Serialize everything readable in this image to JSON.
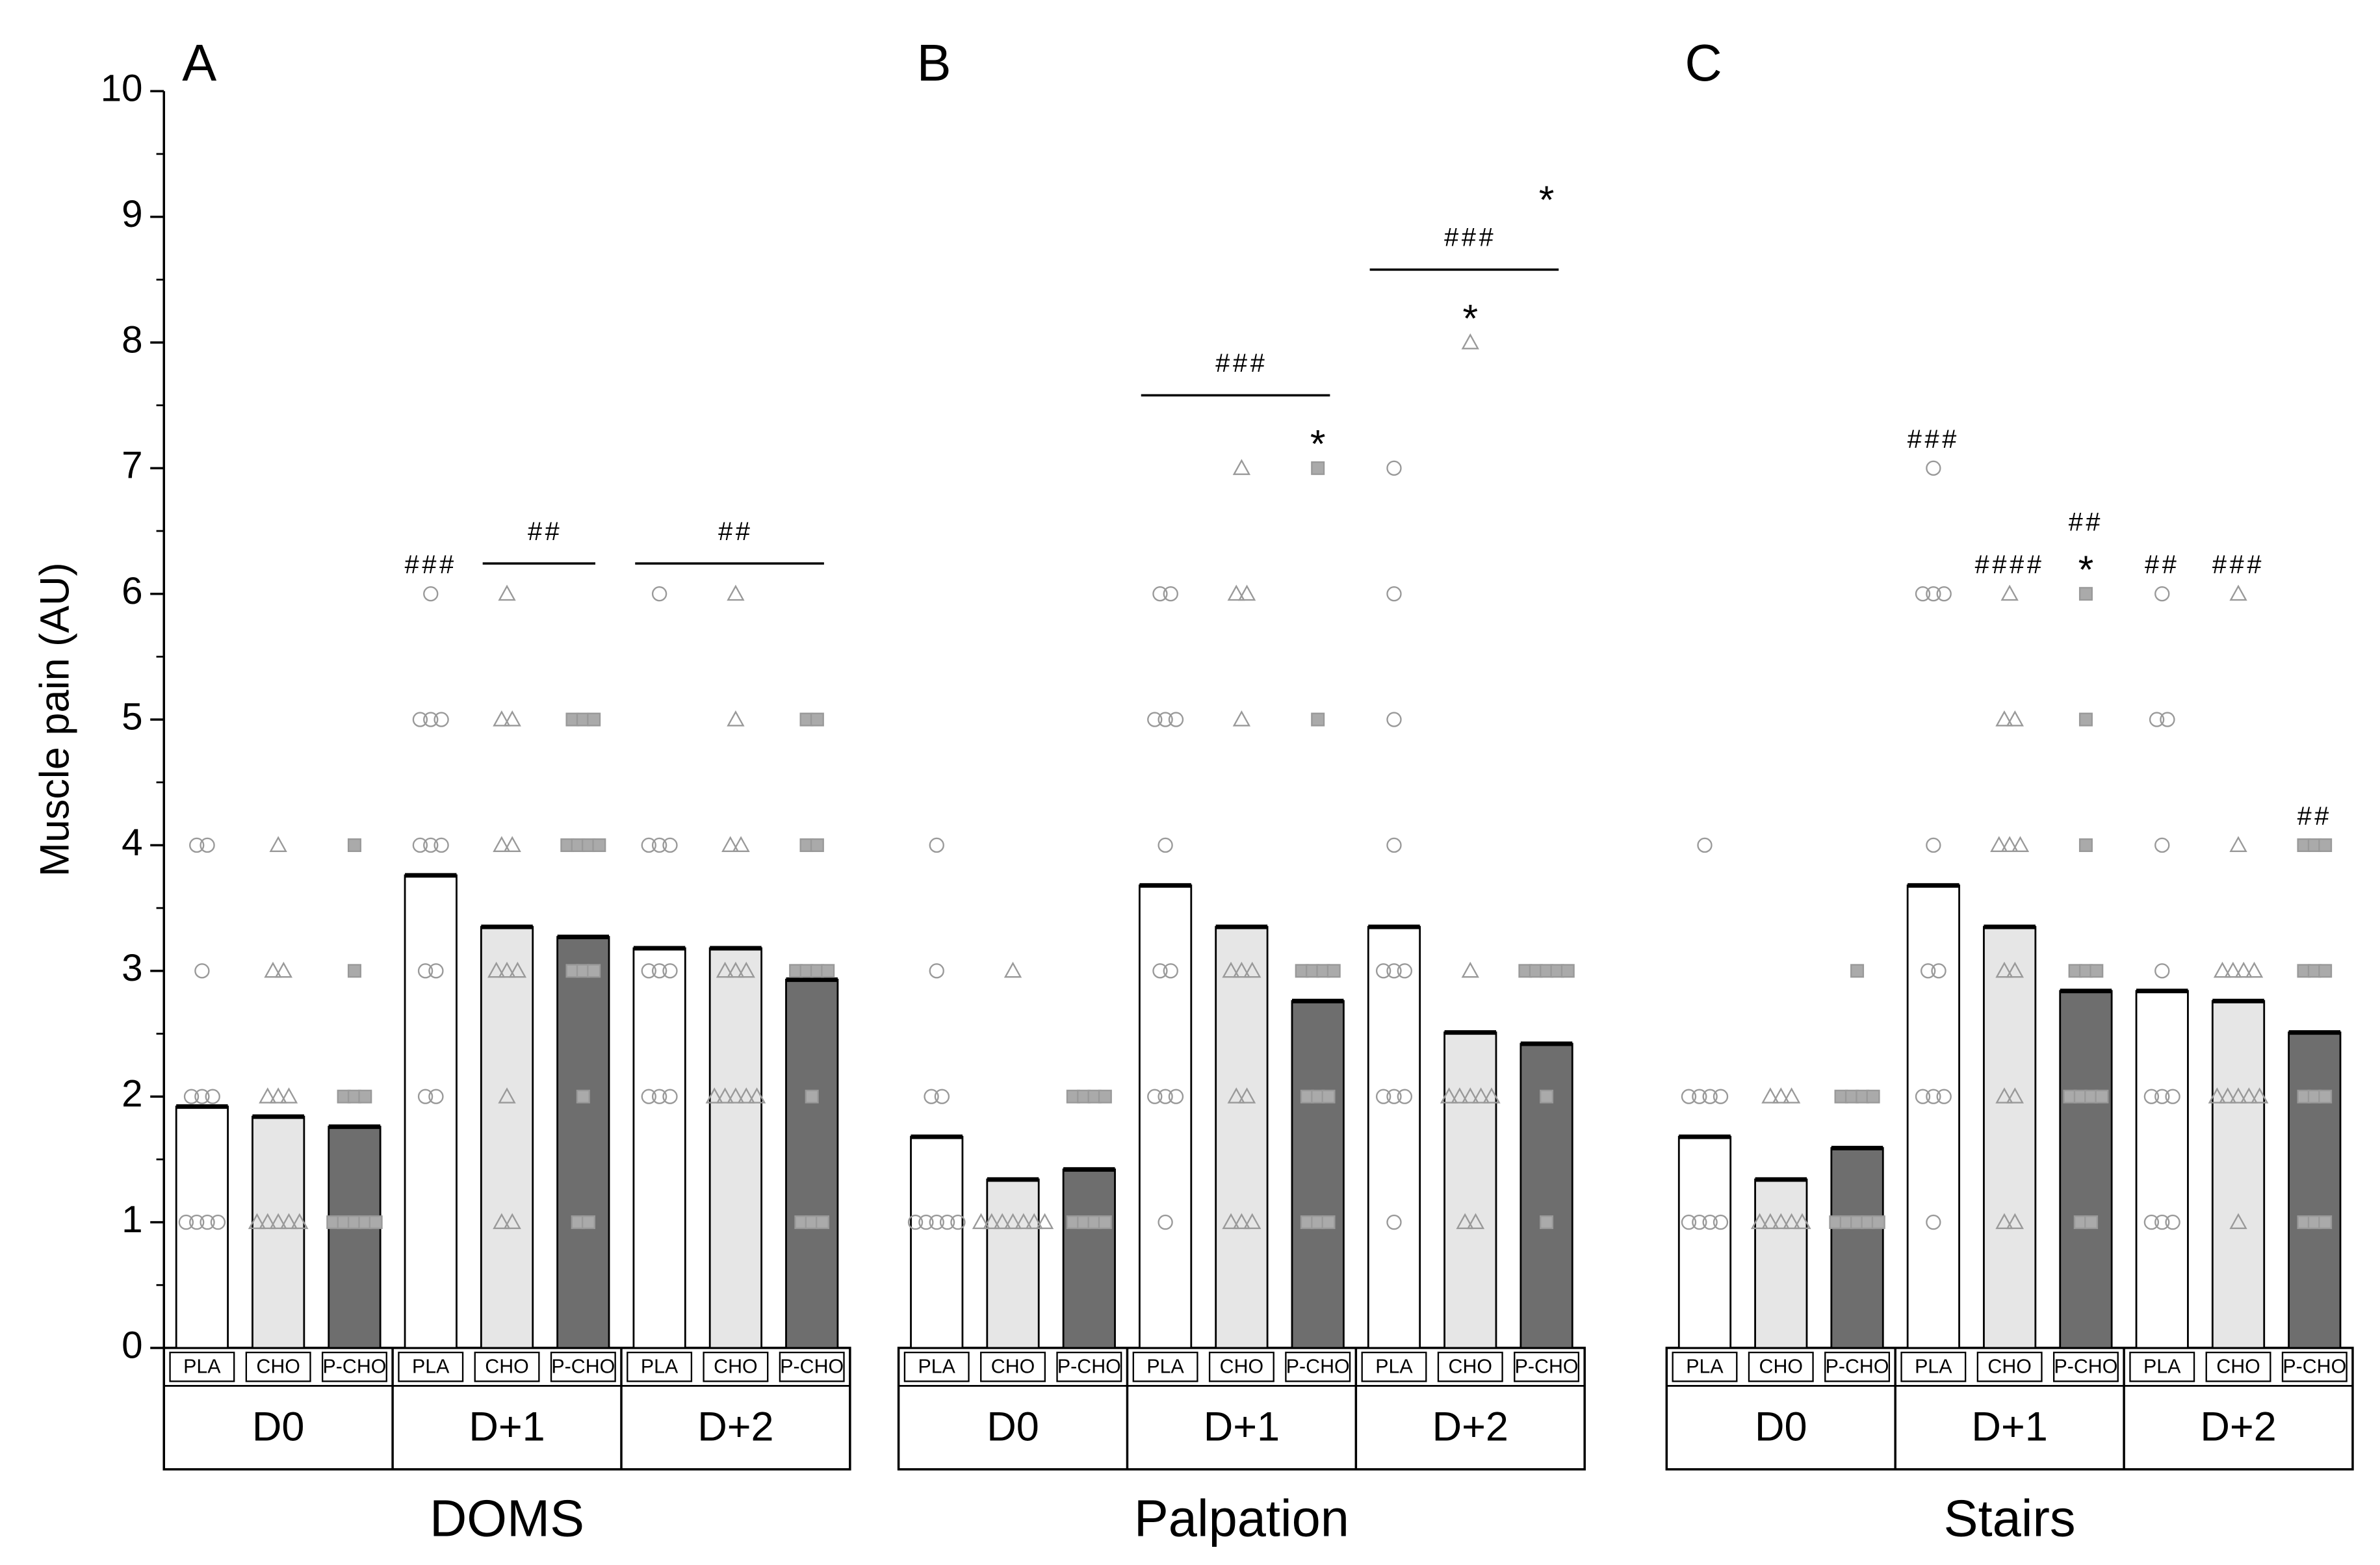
{
  "chart_data": [
    {
      "type": "bar",
      "title": "A",
      "xlabel": "DOMS",
      "ylabel": "Muscle pain (AU)",
      "ylim": [
        0,
        10
      ],
      "yticks": [
        0,
        1,
        2,
        3,
        4,
        5,
        6,
        7,
        8,
        9,
        10
      ],
      "groups": [
        "D0",
        "D+1",
        "D+2"
      ],
      "series": [
        {
          "name": "PLA",
          "color": "#ffffff",
          "marker": "circle",
          "values": [
            1.92,
            3.76,
            3.18
          ],
          "points": [
            [
              1,
              1,
              1,
              1,
              2,
              2,
              2,
              3,
              4,
              4
            ],
            [
              2,
              2,
              3,
              3,
              4,
              4,
              4,
              5,
              5,
              5,
              6
            ],
            [
              2,
              2,
              2,
              3,
              3,
              3,
              4,
              4,
              4,
              6
            ]
          ]
        },
        {
          "name": "CHO",
          "color": "#e6e6e6",
          "marker": "triangle",
          "values": [
            1.84,
            3.35,
            3.18
          ],
          "points": [
            [
              1,
              1,
              1,
              1,
              1,
              2,
              2,
              2,
              3,
              3,
              4
            ],
            [
              1,
              1,
              2,
              3,
              3,
              3,
              4,
              4,
              5,
              5,
              6
            ],
            [
              2,
              2,
              2,
              2,
              2,
              3,
              3,
              3,
              4,
              4,
              5,
              6
            ]
          ]
        },
        {
          "name": "P-CHO",
          "color": "#6e6e6e",
          "marker": "square",
          "values": [
            1.76,
            3.27,
            2.93
          ],
          "points": [
            [
              1,
              1,
              1,
              1,
              1,
              2,
              2,
              2,
              3,
              4
            ],
            [
              1,
              1,
              2,
              3,
              3,
              3,
              4,
              4,
              4,
              4,
              5,
              5,
              5
            ],
            [
              1,
              1,
              1,
              2,
              3,
              3,
              3,
              3,
              4,
              4,
              5,
              5
            ]
          ]
        }
      ],
      "annotations": [
        {
          "group": 1,
          "series": [
            0,
            0
          ],
          "text": "###"
        },
        {
          "group": 1,
          "series": [
            1,
            2
          ],
          "text": "##"
        },
        {
          "group": 2,
          "series": [
            0,
            2
          ],
          "text": "##"
        }
      ]
    },
    {
      "type": "bar",
      "title": "B",
      "xlabel": "Palpation",
      "groups": [
        "D0",
        "D+1",
        "D+2"
      ],
      "series": [
        {
          "name": "PLA",
          "color": "#ffffff",
          "marker": "circle",
          "values": [
            1.68,
            3.68,
            3.35
          ],
          "points": [
            [
              1,
              1,
              1,
              1,
              1,
              2,
              2,
              3,
              4
            ],
            [
              1,
              2,
              2,
              2,
              3,
              3,
              4,
              5,
              5,
              5,
              6,
              6
            ],
            [
              1,
              2,
              2,
              2,
              3,
              3,
              3,
              4,
              5,
              6,
              7
            ]
          ]
        },
        {
          "name": "CHO",
          "color": "#e6e6e6",
          "marker": "triangle",
          "values": [
            1.34,
            3.35,
            2.51
          ],
          "points": [
            [
              1,
              1,
              1,
              1,
              1,
              1,
              1,
              3
            ],
            [
              1,
              1,
              1,
              2,
              2,
              3,
              3,
              3,
              5,
              6,
              6,
              7
            ],
            [
              1,
              1,
              2,
              2,
              2,
              2,
              2,
              3,
              8
            ]
          ]
        },
        {
          "name": "P-CHO",
          "color": "#6e6e6e",
          "marker": "square",
          "values": [
            1.42,
            2.76,
            2.42
          ],
          "points": [
            [
              1,
              1,
              1,
              1,
              2,
              2,
              2,
              2
            ],
            [
              1,
              1,
              1,
              2,
              2,
              2,
              3,
              3,
              3,
              3,
              5,
              7
            ],
            [
              1,
              2,
              3,
              3,
              3,
              3,
              3
            ]
          ]
        }
      ],
      "annotations": [
        {
          "group": 1,
          "series": [
            2,
            2
          ],
          "text": "*"
        },
        {
          "group": 1,
          "series": [
            0,
            2
          ],
          "text": "###"
        },
        {
          "group": 2,
          "series": [
            1,
            1
          ],
          "text": "*"
        },
        {
          "group": 2,
          "series": [
            0,
            2
          ],
          "text": "###"
        },
        {
          "group": 2,
          "series": [
            2,
            2
          ],
          "text": "*"
        }
      ]
    },
    {
      "type": "bar",
      "title": "C",
      "xlabel": "Stairs",
      "groups": [
        "D0",
        "D+1",
        "D+2"
      ],
      "series": [
        {
          "name": "PLA",
          "color": "#ffffff",
          "marker": "circle",
          "values": [
            1.68,
            3.68,
            2.84
          ],
          "points": [
            [
              1,
              1,
              1,
              1,
              2,
              2,
              2,
              2,
              4
            ],
            [
              1,
              2,
              2,
              2,
              3,
              3,
              4,
              6,
              6,
              6,
              7
            ],
            [
              1,
              1,
              1,
              2,
              2,
              2,
              3,
              4,
              5,
              5,
              6
            ]
          ]
        },
        {
          "name": "CHO",
          "color": "#e6e6e6",
          "marker": "triangle",
          "values": [
            1.34,
            3.35,
            2.76
          ],
          "points": [
            [
              1,
              1,
              1,
              1,
              1,
              2,
              2,
              2
            ],
            [
              1,
              1,
              2,
              2,
              3,
              3,
              4,
              4,
              4,
              5,
              5,
              6
            ],
            [
              1,
              2,
              2,
              2,
              2,
              2,
              3,
              3,
              3,
              3,
              4,
              6
            ]
          ]
        },
        {
          "name": "P-CHO",
          "color": "#6e6e6e",
          "marker": "square",
          "values": [
            1.59,
            2.84,
            2.51
          ],
          "points": [
            [
              1,
              1,
              1,
              1,
              1,
              2,
              2,
              2,
              2,
              3
            ],
            [
              1,
              1,
              2,
              2,
              2,
              2,
              3,
              3,
              3,
              4,
              5,
              6
            ],
            [
              1,
              1,
              1,
              2,
              2,
              2,
              3,
              3,
              3,
              4,
              4,
              4
            ]
          ]
        }
      ],
      "annotations": [
        {
          "group": 1,
          "series": [
            0,
            0
          ],
          "text": "###"
        },
        {
          "group": 1,
          "series": [
            1,
            1
          ],
          "text": "####"
        },
        {
          "group": 1,
          "series": [
            2,
            2
          ],
          "text": "*"
        },
        {
          "group": 1,
          "series": [
            2,
            2
          ],
          "text": "##"
        },
        {
          "group": 2,
          "series": [
            0,
            0
          ],
          "text": "##"
        },
        {
          "group": 2,
          "series": [
            1,
            1
          ],
          "text": "###"
        },
        {
          "group": 2,
          "series": [
            2,
            2
          ],
          "text": "##"
        }
      ]
    }
  ]
}
